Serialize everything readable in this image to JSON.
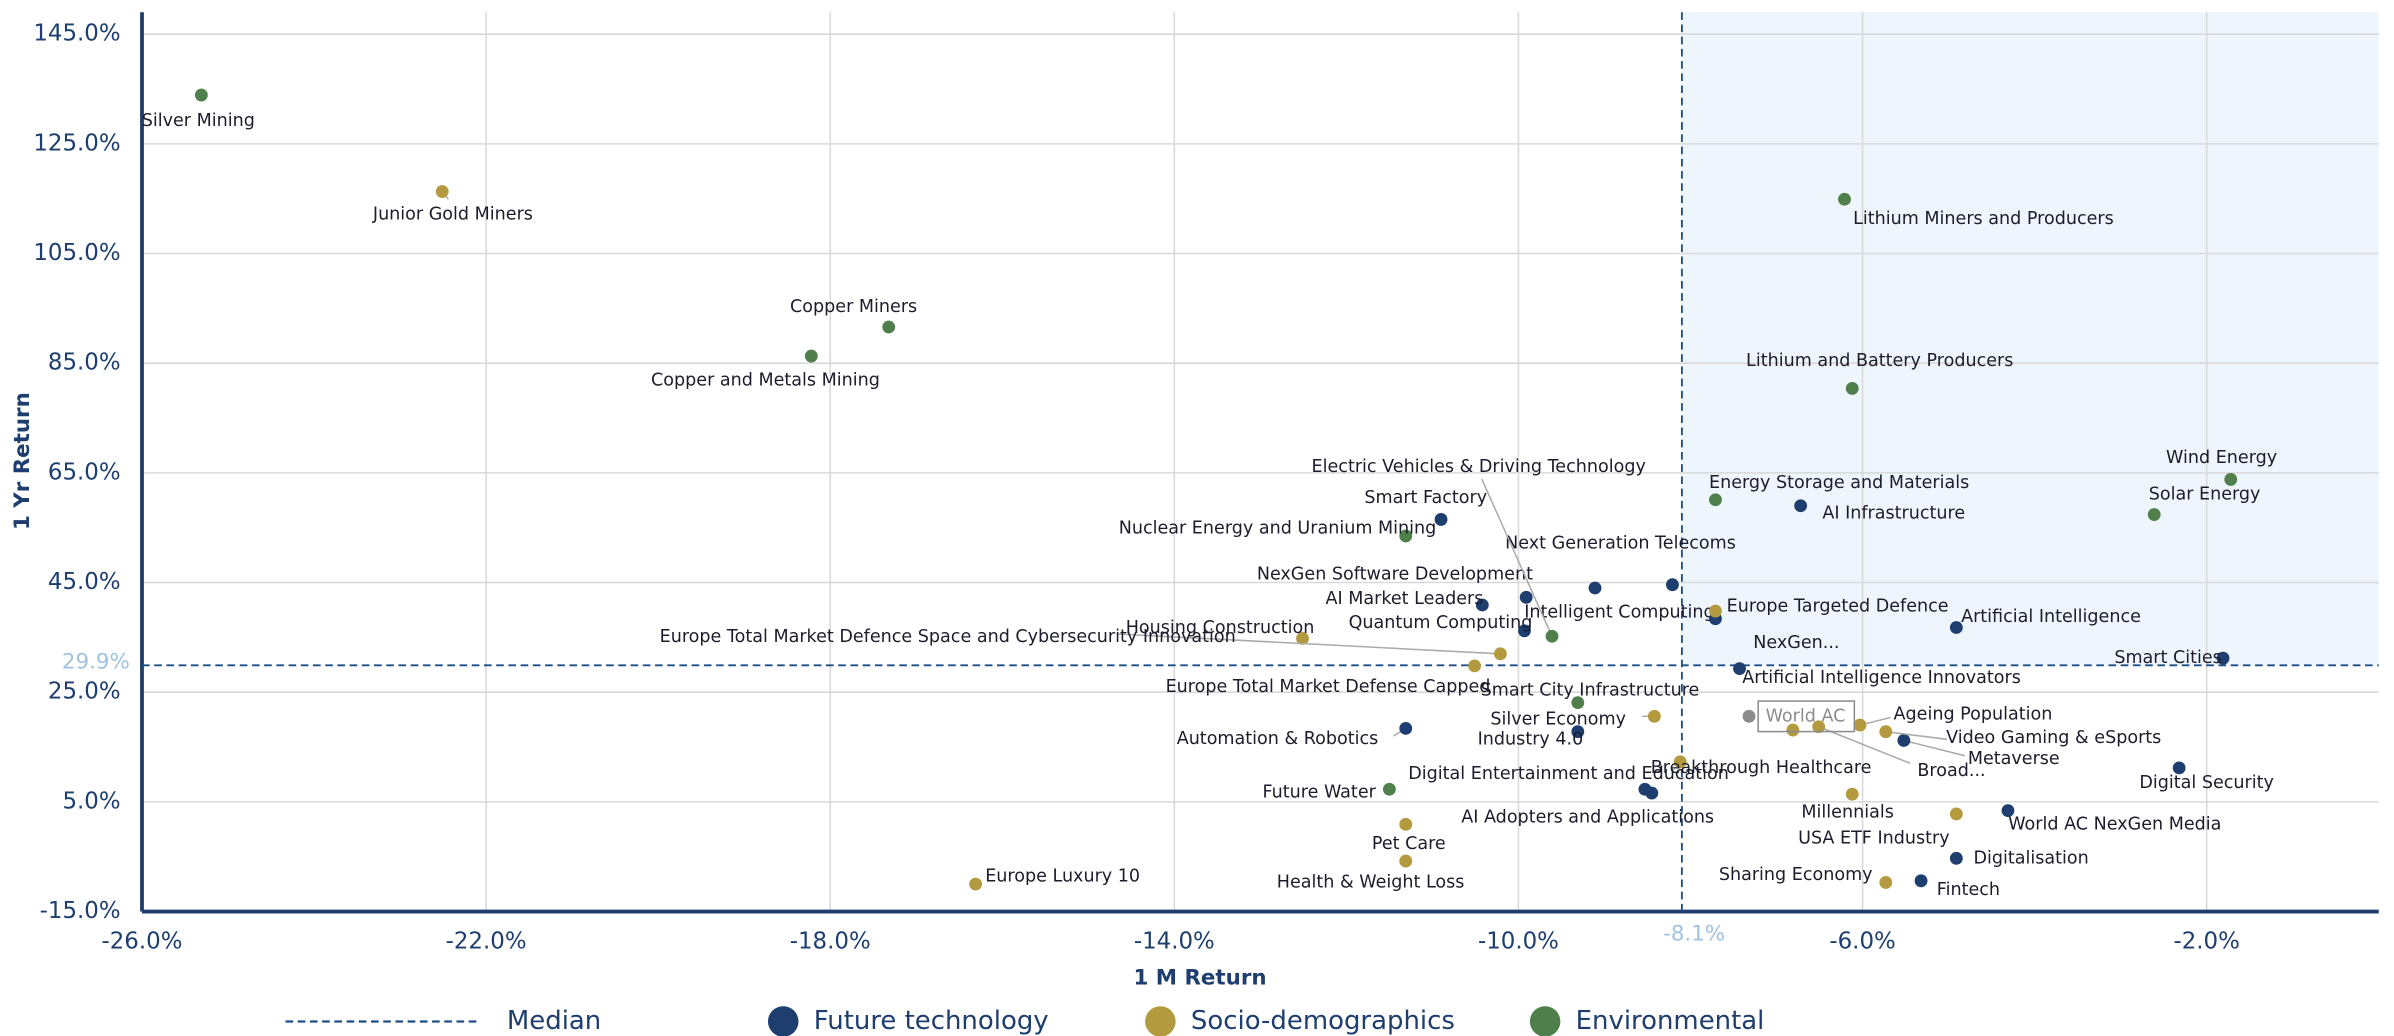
{
  "chart_data": {
    "type": "scatter",
    "x_label": "1 M Return",
    "y_label": "1 Yr Return",
    "xlim": [
      -26,
      0
    ],
    "ylim": [
      -15,
      149
    ],
    "xticks": [
      {
        "value": -26,
        "label": "-26.0%"
      },
      {
        "value": -22,
        "label": "-22.0%"
      },
      {
        "value": -18,
        "label": "-18.0%"
      },
      {
        "value": -14,
        "label": "-14.0%"
      },
      {
        "value": -10,
        "label": "-10.0%"
      },
      {
        "value": -6,
        "label": "-6.0%"
      },
      {
        "value": -2,
        "label": "-2.0%"
      }
    ],
    "yticks": [
      {
        "value": -15,
        "label": "-15.0%"
      },
      {
        "value": 5,
        "label": "5.0%"
      },
      {
        "value": 25,
        "label": "25.0%"
      },
      {
        "value": 45,
        "label": "45.0%"
      },
      {
        "value": 65,
        "label": "65.0%"
      },
      {
        "value": 85,
        "label": "85.0%"
      },
      {
        "value": 105,
        "label": "105.0%"
      },
      {
        "value": 125,
        "label": "125.0%"
      },
      {
        "value": 145,
        "label": "145.0%"
      }
    ],
    "grid": true,
    "median": {
      "name": "Median",
      "x": {
        "value": -8.1,
        "label": "-8.1%"
      },
      "y": {
        "value": 29.9,
        "label": "29.9%"
      },
      "color": "#1d4f86",
      "shade": "#eef5fc"
    },
    "benchmark": {
      "label": "World AC",
      "x": -7.32,
      "y": 20.6,
      "color": "#8c8c8c"
    },
    "series": [
      {
        "name": "Future technology",
        "color": "#1d3e6e",
        "x": [
          -10.9,
          -10.42,
          -9.91,
          -9.93,
          -9.11,
          -8.21,
          -7.71,
          -6.72,
          -4.91,
          -1.81,
          -7.43,
          -11.31,
          -9.31,
          -8.53,
          -8.45,
          -2.32,
          -4.31,
          -4.91,
          -5.32,
          -5.52
        ],
        "values": [
          56.5,
          40.9,
          42.3,
          36.2,
          44.0,
          44.6,
          38.4,
          59.0,
          36.8,
          31.2,
          29.3,
          18.4,
          17.8,
          7.3,
          6.6,
          11.2,
          3.4,
          -5.3,
          -9.4,
          16.2
        ],
        "labels": [
          "Smart Factory",
          "AI Market Leaders",
          "NexGen Software Development",
          "Quantum Computing",
          "Intelligent Computing",
          "Next Generation Telecoms",
          "NexGen...",
          "AI Infrastructure",
          "Artificial Intelligence",
          "Smart Cities",
          "Artificial Intelligence Innovators",
          "Automation & Robotics",
          "Industry 4.0",
          "Digital Entertainment and Education",
          "AI Adopters and Applications",
          "Digital Security",
          "World AC NexGen Media",
          "Digitalisation",
          "Fintech",
          "Metaverse"
        ]
      },
      {
        "name": "Socio-demographics",
        "color": "#b39a3e",
        "x": [
          -22.51,
          -12.51,
          -10.21,
          -10.51,
          -8.42,
          -8.12,
          -6.12,
          -4.91,
          -5.73,
          -11.31,
          -11.31,
          -16.31,
          -7.71,
          -6.81,
          -6.51,
          -6.03,
          -5.73
        ],
        "values": [
          116.3,
          34.8,
          32.0,
          29.8,
          20.6,
          12.3,
          6.4,
          2.8,
          -9.7,
          0.9,
          -5.8,
          -10.0,
          39.8,
          18.1,
          18.7,
          19.0,
          17.8
        ],
        "labels": [
          "Junior Gold Miners",
          "Housing Construction",
          "Europe Total Market Defence Space and Cybersecurity Innovation",
          "Europe Total Market Defense Capped",
          "Silver Economy",
          "Breakthrough Healthcare",
          "Millennials",
          "USA ETF Industry",
          "Sharing Economy",
          "Pet Care",
          "Health & Weight Loss",
          "Europe Luxury 10",
          "Europe Targeted Defence",
          null,
          "Broad...",
          "Ageing Population",
          "Video Gaming & eSports"
        ]
      },
      {
        "name": "Environmental",
        "color": "#4f7f4a",
        "x": [
          -25.31,
          -17.32,
          -18.22,
          -6.21,
          -6.12,
          -1.72,
          -2.61,
          -7.71,
          -11.31,
          -9.61,
          -9.31,
          -11.5
        ],
        "values": [
          133.9,
          91.6,
          86.3,
          114.9,
          80.4,
          63.8,
          57.4,
          60.1,
          53.5,
          35.2,
          23.1,
          7.3
        ],
        "labels": [
          "Silver Mining",
          "Copper Miners",
          "Copper and Metals Mining",
          "Lithium Miners and Producers",
          "Lithium and Battery Producers",
          "Wind Energy",
          "Solar Energy",
          "Energy Storage and Materials",
          "Nuclear Energy and Uranium Mining",
          "Electric Vehicles & Driving Technology",
          "Smart City Infrastructure",
          "Future Water"
        ]
      }
    ]
  }
}
